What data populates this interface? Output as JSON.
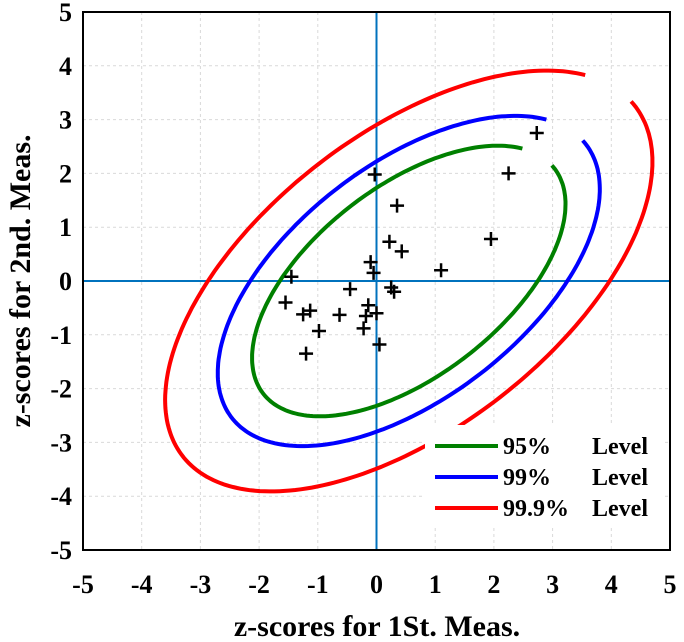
{
  "chart_data": {
    "type": "scatter",
    "xlabel": "z-scores for 1St. Meas.",
    "ylabel": "z-scores for 2nd. Meas.",
    "xlim": [
      -5,
      5
    ],
    "ylim": [
      -5,
      5
    ],
    "xticks": [
      "-5",
      "-4",
      "-3",
      "-2",
      "-1",
      "0",
      "1",
      "2",
      "3",
      "4",
      "5"
    ],
    "yticks": [
      "-5",
      "-4",
      "-3",
      "-2",
      "-1",
      "0",
      "1",
      "2",
      "3",
      "4",
      "5"
    ],
    "grid": true,
    "legend_position": "bottom-right",
    "points": [
      {
        "x": -1.45,
        "y": 0.08
      },
      {
        "x": -1.55,
        "y": -0.4
      },
      {
        "x": -1.25,
        "y": -0.62
      },
      {
        "x": -1.13,
        "y": -0.55
      },
      {
        "x": -1.2,
        "y": -1.35
      },
      {
        "x": -0.98,
        "y": -0.93
      },
      {
        "x": -0.63,
        "y": -0.63
      },
      {
        "x": -0.45,
        "y": -0.15
      },
      {
        "x": -0.22,
        "y": -0.88
      },
      {
        "x": -0.18,
        "y": -0.65
      },
      {
        "x": -0.14,
        "y": -0.45
      },
      {
        "x": -0.1,
        "y": 0.35
      },
      {
        "x": -0.05,
        "y": 0.15
      },
      {
        "x": 0.0,
        "y": -0.6
      },
      {
        "x": 0.05,
        "y": -1.18
      },
      {
        "x": -0.03,
        "y": 1.98
      },
      {
        "x": 0.22,
        "y": 0.73
      },
      {
        "x": 0.25,
        "y": -0.12
      },
      {
        "x": 0.3,
        "y": -0.2
      },
      {
        "x": 0.35,
        "y": 1.4
      },
      {
        "x": 0.43,
        "y": 0.55
      },
      {
        "x": 1.1,
        "y": 0.2
      },
      {
        "x": 1.95,
        "y": 0.78
      },
      {
        "x": 2.25,
        "y": 2.0
      },
      {
        "x": 2.73,
        "y": 2.75
      }
    ],
    "ellipses": [
      {
        "name": "95%",
        "label": "Level",
        "color": "#008000"
      },
      {
        "name": "99%",
        "label": "Level",
        "color": "#0000ff"
      },
      {
        "name": "99.9%",
        "label": "Level",
        "color": "#ff0000"
      }
    ],
    "ellipse_params": {
      "cx": 0.55,
      "cy": 0.0,
      "angle_deg": 42,
      "axes": [
        [
          3.25,
          1.7
        ],
        [
          3.95,
          2.1
        ],
        [
          5.05,
          2.65
        ]
      ]
    },
    "reference_lines": {
      "x": 0,
      "y": 0,
      "color": "#0072bd"
    }
  }
}
